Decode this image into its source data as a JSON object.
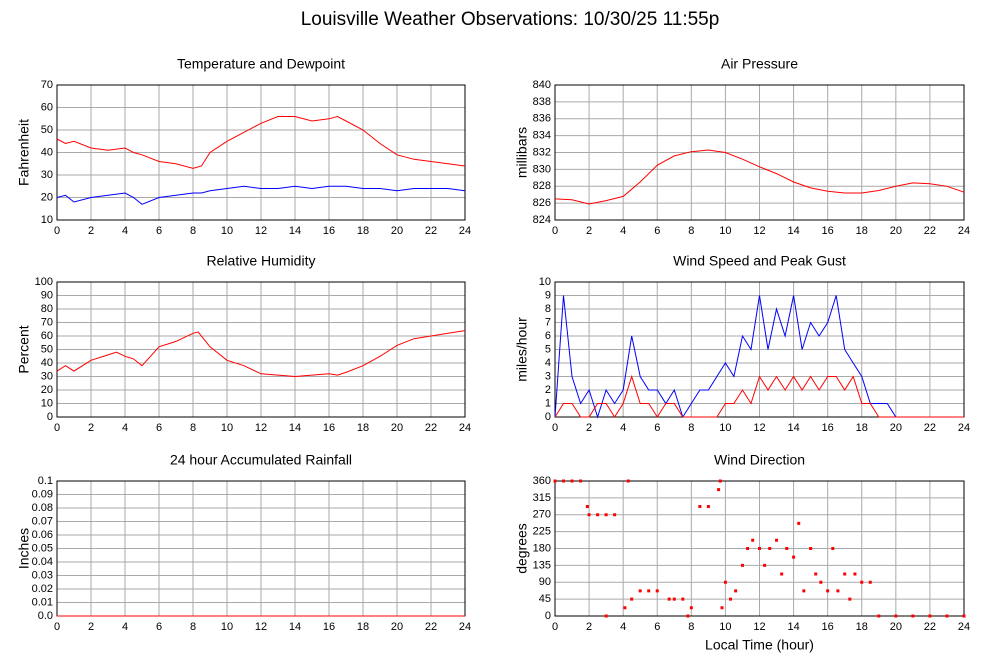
{
  "title": "Louisville Weather Observations: 10/30/25 11:55p",
  "chart_data": [
    {
      "type": "line",
      "title": "Temperature and Dewpoint",
      "ylabel": "Fahrenheit",
      "xlim": [
        0,
        24
      ],
      "xticks": [
        0,
        2,
        4,
        6,
        8,
        10,
        12,
        14,
        16,
        18,
        20,
        22,
        24
      ],
      "ylim": [
        10,
        70
      ],
      "yticks": [
        10,
        20,
        30,
        40,
        50,
        60,
        70
      ],
      "grid": true,
      "x": [
        0,
        0.5,
        1,
        2,
        3,
        4,
        4.5,
        5,
        6,
        7,
        8,
        8.5,
        9,
        10,
        11,
        12,
        13,
        14,
        15,
        16,
        16.5,
        17,
        18,
        19,
        20,
        21,
        22,
        23,
        24
      ],
      "series": [
        {
          "color": "#ff0000",
          "values": [
            46,
            44,
            45,
            42,
            41,
            42,
            40,
            39,
            36,
            35,
            33,
            34,
            40,
            45,
            49,
            53,
            56,
            56,
            54,
            55,
            56,
            54,
            50,
            44,
            39,
            37,
            36,
            35,
            34
          ]
        },
        {
          "color": "#0000ff",
          "values": [
            20,
            21,
            18,
            20,
            21,
            22,
            20,
            17,
            20,
            21,
            22,
            22,
            23,
            24,
            25,
            24,
            24,
            25,
            24,
            25,
            25,
            25,
            24,
            24,
            23,
            24,
            24,
            24,
            23
          ]
        }
      ]
    },
    {
      "type": "line",
      "title": "Air Pressure",
      "ylabel": "millibars",
      "xlim": [
        0,
        24
      ],
      "xticks": [
        0,
        2,
        4,
        6,
        8,
        10,
        12,
        14,
        16,
        18,
        20,
        22,
        24
      ],
      "ylim": [
        824,
        840
      ],
      "yticks": [
        824,
        826,
        828,
        830,
        832,
        834,
        836,
        838,
        840
      ],
      "grid": true,
      "x": [
        0,
        1,
        2,
        3,
        4,
        5,
        6,
        7,
        8,
        9,
        10,
        11,
        12,
        13,
        14,
        15,
        16,
        17,
        18,
        19,
        20,
        21,
        22,
        23,
        24
      ],
      "series": [
        {
          "color": "#ff0000",
          "values": [
            826.5,
            826.4,
            825.9,
            826.3,
            826.8,
            828.5,
            830.5,
            831.6,
            832.1,
            832.3,
            832.0,
            831.2,
            830.3,
            829.5,
            828.5,
            827.8,
            827.4,
            827.2,
            827.2,
            827.5,
            828.0,
            828.4,
            828.3,
            828.0,
            827.3
          ]
        }
      ]
    },
    {
      "type": "line",
      "title": "Relative Humidity",
      "ylabel": "Percent",
      "xlim": [
        0,
        24
      ],
      "xticks": [
        0,
        2,
        4,
        6,
        8,
        10,
        12,
        14,
        16,
        18,
        20,
        22,
        24
      ],
      "ylim": [
        0,
        100
      ],
      "yticks": [
        0,
        10,
        20,
        30,
        40,
        50,
        60,
        70,
        80,
        90,
        100
      ],
      "grid": true,
      "x": [
        0,
        0.5,
        1,
        2,
        3,
        3.5,
        4,
        4.5,
        5,
        5.5,
        6,
        7,
        8,
        8.3,
        9,
        10,
        11,
        12,
        13,
        14,
        15,
        16,
        16.5,
        17,
        18,
        19,
        20,
        21,
        22,
        23,
        24
      ],
      "series": [
        {
          "color": "#ff0000",
          "values": [
            34,
            38,
            34,
            42,
            46,
            48,
            45,
            43,
            38,
            45,
            52,
            56,
            62,
            63,
            52,
            42,
            38,
            32,
            31,
            30,
            31,
            32,
            31,
            33,
            38,
            45,
            53,
            58,
            60,
            62,
            64
          ]
        }
      ]
    },
    {
      "type": "line",
      "title": "Wind Speed and Peak Gust",
      "ylabel": "miles/hour",
      "xlim": [
        0,
        24
      ],
      "xticks": [
        0,
        2,
        4,
        6,
        8,
        10,
        12,
        14,
        16,
        18,
        20,
        22,
        24
      ],
      "ylim": [
        0,
        10
      ],
      "yticks": [
        0,
        1,
        2,
        3,
        4,
        5,
        6,
        7,
        8,
        9,
        10
      ],
      "grid": true,
      "x": [
        0,
        0.5,
        1,
        1.5,
        2,
        2.5,
        3,
        3.5,
        4,
        4.5,
        5,
        5.5,
        6,
        6.5,
        7,
        7.5,
        8,
        8.5,
        9,
        9.5,
        10,
        10.5,
        11,
        11.5,
        12,
        12.5,
        13,
        13.5,
        14,
        14.5,
        15,
        15.5,
        16,
        16.5,
        17,
        17.5,
        18,
        18.5,
        19,
        19.5,
        20,
        20.5,
        21,
        21.5,
        22,
        22.5,
        23,
        23.5,
        24
      ],
      "series": [
        {
          "color": "#0000ff",
          "values": [
            0,
            9,
            3,
            1,
            2,
            0,
            2,
            1,
            2,
            6,
            3,
            2,
            2,
            1,
            2,
            0,
            1,
            2,
            2,
            3,
            4,
            3,
            6,
            5,
            9,
            5,
            8,
            6,
            9,
            5,
            7,
            6,
            7,
            9,
            5,
            4,
            3,
            1,
            1,
            1,
            0,
            0,
            0,
            0,
            0,
            0,
            0,
            0,
            0
          ]
        },
        {
          "color": "#ff0000",
          "values": [
            0,
            1,
            1,
            0,
            0,
            1,
            1,
            0,
            1,
            3,
            1,
            1,
            0,
            1,
            1,
            0,
            0,
            0,
            0,
            0,
            1,
            1,
            2,
            1,
            3,
            2,
            3,
            2,
            3,
            2,
            3,
            2,
            3,
            3,
            2,
            3,
            1,
            1,
            0,
            0,
            0,
            0,
            0,
            0,
            0,
            0,
            0,
            0,
            0
          ]
        }
      ]
    },
    {
      "type": "line",
      "title": "24 hour Accumulated Rainfall",
      "ylabel": "Inches",
      "xlim": [
        0,
        24
      ],
      "xticks": [
        0,
        2,
        4,
        6,
        8,
        10,
        12,
        14,
        16,
        18,
        20,
        22,
        24
      ],
      "ylim": [
        0,
        0.1
      ],
      "yticks": [
        {
          "value": 0,
          "label": "0.0"
        },
        0.01,
        0.02,
        0.03,
        0.04,
        0.05,
        0.06,
        0.07,
        0.08,
        0.09,
        0.1
      ],
      "grid": true,
      "x": [
        0,
        24
      ],
      "series": [
        {
          "color": "#ff0000",
          "values": [
            0,
            0
          ]
        }
      ]
    },
    {
      "type": "scatter",
      "title": "Wind Direction",
      "ylabel": "degrees",
      "xlabel": "Local Time (hour)",
      "xlim": [
        0,
        24
      ],
      "xticks": [
        0,
        2,
        4,
        6,
        8,
        10,
        12,
        14,
        16,
        18,
        20,
        22,
        24
      ],
      "ylim": [
        0,
        360
      ],
      "yticks": [
        0,
        45,
        90,
        135,
        180,
        225,
        270,
        315,
        360
      ],
      "grid": true,
      "x": [
        0,
        0.5,
        1,
        1.5,
        1.9,
        2,
        2.5,
        3,
        3,
        3.5,
        4.1,
        4.3,
        4.5,
        5,
        5.5,
        6,
        6.7,
        7,
        7.5,
        7.8,
        8,
        8.5,
        9,
        9.6,
        9.7,
        9.8,
        10,
        10.3,
        10.6,
        11,
        11.3,
        11.6,
        12,
        12.3,
        12.6,
        13,
        13.3,
        13.6,
        14,
        14.3,
        14.6,
        15,
        15.3,
        15.6,
        16,
        16.3,
        16.6,
        17,
        17.3,
        17.6,
        18,
        18.5,
        19,
        20,
        21,
        22,
        23,
        24
      ],
      "series": [
        {
          "color": "#ff0000",
          "values": [
            360,
            360,
            360,
            360,
            292,
            270,
            270,
            270,
            0,
            270,
            22,
            360,
            45,
            67,
            67,
            67,
            45,
            45,
            45,
            0,
            22,
            292,
            292,
            337,
            360,
            22,
            90,
            45,
            67,
            135,
            180,
            202,
            180,
            135,
            180,
            202,
            112,
            180,
            157,
            247,
            67,
            180,
            112,
            90,
            67,
            180,
            67,
            112,
            45,
            112,
            90,
            90,
            0,
            0,
            0,
            0,
            0,
            0
          ]
        }
      ]
    }
  ]
}
